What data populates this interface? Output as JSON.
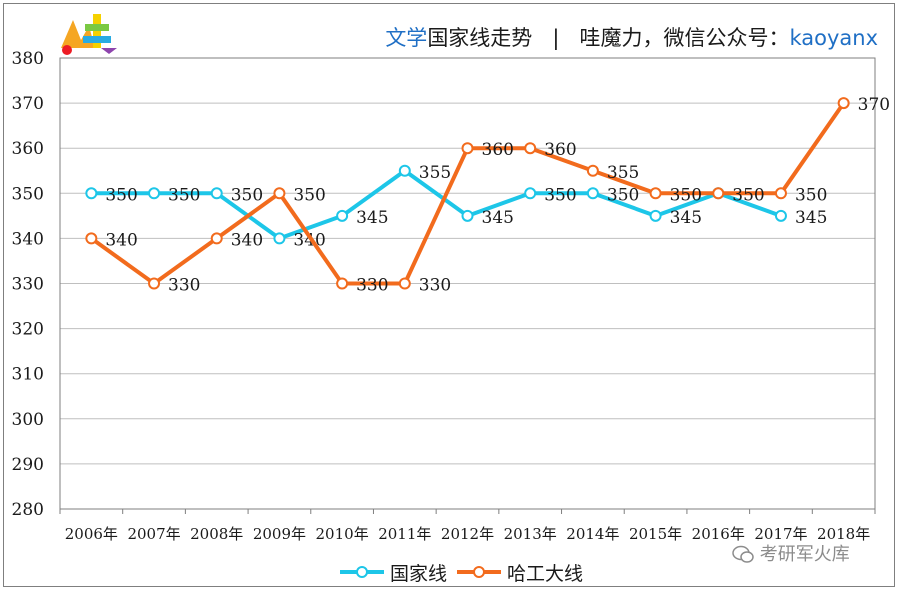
{
  "header": {
    "part1": "文学",
    "part2": "国家线走势",
    "separator": "|",
    "part3": "哇魔力，微信公众号：",
    "part4": "kaoyanx"
  },
  "watermark": {
    "text": "考研军火库",
    "icon": "wechat-icon"
  },
  "logo": {
    "icon": "colorful-logo-icon"
  },
  "chart_data": {
    "type": "line",
    "categories": [
      "2006年",
      "2007年",
      "2008年",
      "2009年",
      "2010年",
      "2011年",
      "2012年",
      "2013年",
      "2014年",
      "2015年",
      "2016年",
      "2017年",
      "2018年"
    ],
    "ylim": [
      280,
      380
    ],
    "yticks": [
      280,
      290,
      300,
      310,
      320,
      330,
      340,
      350,
      360,
      370,
      380
    ],
    "grid": true,
    "legend_position": "bottom",
    "series": [
      {
        "name": "国家线",
        "color": "#1dc6e8",
        "values": [
          350,
          350,
          350,
          340,
          345,
          355,
          345,
          350,
          350,
          345,
          350,
          345,
          null
        ],
        "labels": [
          "350",
          "350",
          "350",
          "340",
          "345",
          "355",
          "345",
          "350",
          "350",
          "345",
          "",
          "345",
          ""
        ]
      },
      {
        "name": "哈工大线",
        "color": "#f26b1d",
        "values": [
          340,
          330,
          340,
          350,
          330,
          330,
          360,
          360,
          355,
          350,
          350,
          350,
          370
        ],
        "labels": [
          "340",
          "330",
          "340",
          "350",
          "330",
          "330",
          "360",
          "360",
          "355",
          "350",
          "350",
          "350",
          "370"
        ]
      }
    ]
  }
}
